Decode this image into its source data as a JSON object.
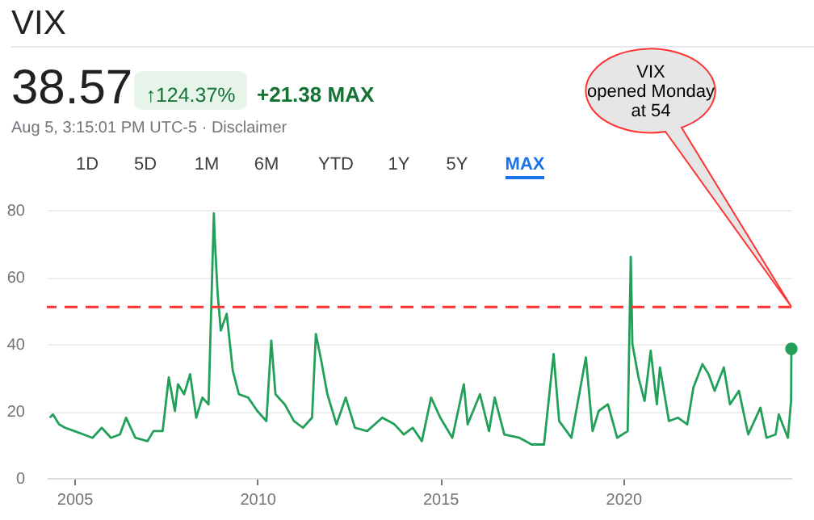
{
  "chart_data": {
    "type": "line",
    "title": "VIX",
    "annotations": [
      "38.57",
      "↑124.37%",
      "+21.38 MAX",
      "Aug 5, 3:15:01 PM UTC-5 · Disclaimer",
      "1D",
      "5D",
      "1M",
      "6M",
      "YTD",
      "1Y",
      "5Y",
      "MAX",
      "VIX\nopened Monday\nat 54"
    ],
    "series": [
      {
        "color": "#22a05a",
        "x": [
          "2004-05",
          "2004-06",
          "2004-08",
          "2004-10",
          "2005-01",
          "2005-04",
          "2005-07",
          "2005-10",
          "2006-01",
          "2006-04",
          "2006-06",
          "2006-09",
          "2007-01",
          "2007-03",
          "2007-06",
          "2007-08",
          "2007-10",
          "2007-11",
          "2008-01",
          "2008-03",
          "2008-05",
          "2008-07",
          "2008-09",
          "2008-10-24",
          "2008-11",
          "2008-12",
          "2009-01",
          "2009-03",
          "2009-05",
          "2009-07",
          "2009-10",
          "2010-01",
          "2010-04",
          "2010-05-20",
          "2010-07",
          "2010-10",
          "2011-01",
          "2011-04",
          "2011-07",
          "2011-08-08",
          "2011-10",
          "2011-12",
          "2012-03",
          "2012-06",
          "2012-09",
          "2013-01",
          "2013-06",
          "2013-10",
          "2014-01",
          "2014-04",
          "2014-07",
          "2014-10",
          "2015-01",
          "2015-05",
          "2015-08-24",
          "2015-10",
          "2016-02",
          "2016-05",
          "2016-06-27",
          "2016-10",
          "2017-03",
          "2017-07",
          "2017-11",
          "2018-02-05",
          "2018-04",
          "2018-08",
          "2018-12-24",
          "2019-03",
          "2019-05",
          "2019-08",
          "2019-11",
          "2020-02-14",
          "2020-03-16",
          "2020-04",
          "2020-06",
          "2020-08",
          "2020-10",
          "2020-12",
          "2021-01",
          "2021-04",
          "2021-07",
          "2021-10",
          "2021-12",
          "2022-03",
          "2022-05",
          "2022-07",
          "2022-10",
          "2022-12",
          "2023-03",
          "2023-06",
          "2023-10",
          "2023-12",
          "2024-03",
          "2024-04",
          "2024-07",
          "2024-08-02",
          "2024-08-05"
        ],
        "values": [
          18,
          19,
          16,
          15,
          14,
          13,
          12,
          15,
          12,
          13,
          18,
          12,
          11,
          14,
          14,
          30,
          20,
          28,
          25,
          31,
          18,
          24,
          22,
          79,
          72,
          55,
          44,
          49,
          32,
          25,
          24,
          20,
          17,
          41,
          25,
          22,
          17,
          15,
          18,
          43,
          35,
          25,
          16,
          24,
          15,
          14,
          18,
          16,
          13,
          15,
          11,
          24,
          18,
          12,
          28,
          16,
          25,
          14,
          24,
          13,
          12,
          10,
          10,
          37,
          17,
          12,
          36,
          14,
          20,
          22,
          12,
          14,
          66,
          40,
          30,
          23,
          38,
          22,
          33,
          17,
          18,
          16,
          27,
          34,
          31,
          26,
          33,
          22,
          26,
          13,
          21,
          12,
          13,
          19,
          12,
          23,
          38.57
        ]
      },
      {
        "type": "scatter",
        "color": "#22a05a",
        "x": [
          "2024-08-05"
        ],
        "values": [
          38.57
        ]
      }
    ],
    "xlim": [
      "2004-04",
      "2024-08-05"
    ],
    "xticks": [
      {
        "value": "2005",
        "label": "2005"
      },
      {
        "value": "2010",
        "label": "2010"
      },
      {
        "value": "2015",
        "label": "2015"
      },
      {
        "value": "2020",
        "label": "2020"
      }
    ],
    "ylim": [
      0,
      80
    ],
    "yticks": [
      0,
      20,
      40,
      60,
      80
    ],
    "grid": "y",
    "ref_lines": [
      {
        "axis": "y",
        "value": 51,
        "color": "#ff3333",
        "line_style": "dashed"
      }
    ]
  }
}
